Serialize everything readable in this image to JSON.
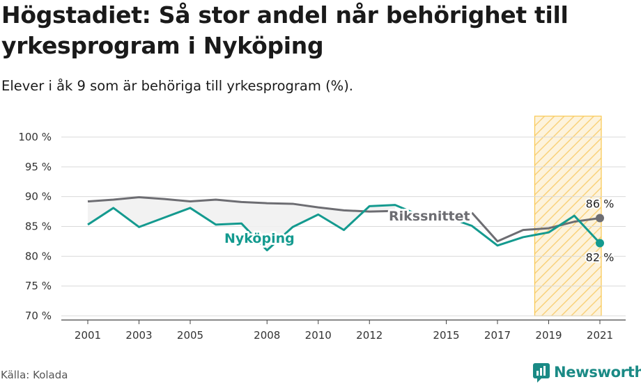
{
  "header": {
    "title": "Högstadiet: Så stor andel når behörighet till yrkesprogram i Nyköping",
    "subtitle": "Elever i åk 9 som är behöriga till yrkesprogram (%)."
  },
  "footer": {
    "source": "Källa: Kolada",
    "brand": "Newsworthy"
  },
  "colors": {
    "local": "#149a8f",
    "national": "#6d6d72",
    "highlight": "#f9c74f",
    "grid": "#d9d9d9",
    "brand": "#1a8a85"
  },
  "icons": [
    "newsworthy-logo-icon"
  ],
  "chart_data": {
    "type": "line",
    "title": "Högstadiet: Så stor andel når behörighet till yrkesprogram i Nyköping",
    "subtitle": "Elever i åk 9 som är behöriga till yrkesprogram (%).",
    "ylim": [
      70,
      100
    ],
    "y_ticks": [
      70,
      75,
      80,
      85,
      90,
      95,
      100
    ],
    "y_tick_labels": [
      "70 %",
      "75 %",
      "80 %",
      "85 %",
      "90 %",
      "95 %",
      "100 %"
    ],
    "xlim": [
      2001,
      2021
    ],
    "x_ticks": [
      2001,
      2003,
      2005,
      2008,
      2010,
      2012,
      2015,
      2017,
      2019,
      2021
    ],
    "x_tick_labels": [
      "2001",
      "2003",
      "2005",
      "2008",
      "2010",
      "2012",
      "2015",
      "2017",
      "2019",
      "2021"
    ],
    "highlight_range": [
      2019,
      2021
    ],
    "grid": true,
    "series": [
      {
        "name": "Rikssnittet",
        "role": "national",
        "x": [
          2001,
          2002,
          2003,
          2004,
          2005,
          2006,
          2007,
          2008,
          2009,
          2010,
          2011,
          2012,
          2013,
          2016,
          2017,
          2018,
          2019,
          2020,
          2021
        ],
        "y": [
          89.2,
          89.5,
          89.9,
          89.6,
          89.2,
          89.5,
          89.1,
          88.9,
          88.8,
          88.2,
          87.7,
          87.5,
          87.6,
          87.3,
          82.5,
          84.4,
          84.7,
          85.8,
          86.4
        ],
        "end_label": "86 %"
      },
      {
        "name": "Nyköping",
        "role": "local",
        "x": [
          2001,
          2002,
          2003,
          2004,
          2005,
          2006,
          2007,
          2008,
          2009,
          2010,
          2011,
          2012,
          2013,
          2014,
          2015,
          2016,
          2017,
          2018,
          2019,
          2020,
          2021
        ],
        "y": [
          85.3,
          88.1,
          84.9,
          86.5,
          88.1,
          85.3,
          85.5,
          81.0,
          84.9,
          87.0,
          84.4,
          88.4,
          88.6,
          86.8,
          86.6,
          85.1,
          81.8,
          83.2,
          84.0,
          86.8,
          82.2
        ],
        "end_label": "82 %"
      }
    ]
  }
}
